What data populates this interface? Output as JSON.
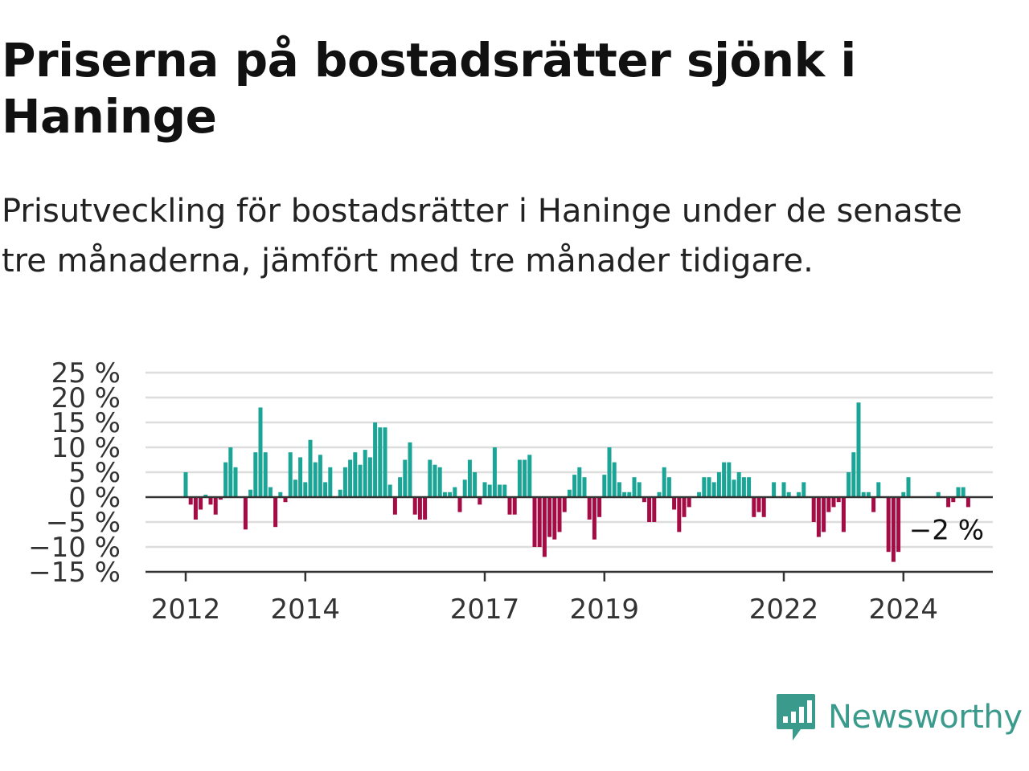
{
  "title": "Priserna på bostadsrätter sjönk i Haninge",
  "subtitle": "Prisutveckling för bostadsrätter i Haninge under de senaste tre månaderna, jämfört med tre månader tidigare.",
  "brand": {
    "name": "Newsworthy",
    "color": "#3a9a8c"
  },
  "colors": {
    "positive": "#1aa596",
    "negative": "#a50b44",
    "grid": "#dddddd",
    "axis": "#333333"
  },
  "chart_data": {
    "type": "bar",
    "unit": "%",
    "ylim": [
      -15,
      25
    ],
    "yticks": [
      25,
      20,
      15,
      10,
      5,
      0,
      -5,
      -10,
      -15
    ],
    "ytick_labels": [
      "25 %",
      "20 %",
      "15 %",
      "10 %",
      "5 %",
      "0 %",
      "−5 %",
      "−10 %",
      "−15 %"
    ],
    "xticks": [
      {
        "label": "2012",
        "date": "2012-01"
      },
      {
        "label": "2014",
        "date": "2014-01"
      },
      {
        "label": "2017",
        "date": "2017-01"
      },
      {
        "label": "2019",
        "date": "2019-01"
      },
      {
        "label": "2022",
        "date": "2022-01"
      },
      {
        "label": "2024",
        "date": "2024-01"
      }
    ],
    "grid": true,
    "last_value_label": "−2 %",
    "start": "2012-01",
    "values": [
      5,
      -1.5,
      -4.5,
      -2.5,
      0.5,
      -1.5,
      -3.5,
      -0.5,
      7,
      10,
      6,
      0,
      -6.5,
      1.5,
      9,
      18,
      9,
      2,
      -6,
      1,
      -1,
      9,
      3.5,
      8,
      3,
      11.5,
      7,
      8.5,
      3,
      6,
      0,
      1.5,
      6,
      7.5,
      9,
      6.5,
      9.5,
      8,
      15,
      14,
      14,
      2.5,
      -3.5,
      4,
      7.5,
      11,
      -3.5,
      -4.5,
      -4.5,
      7.5,
      6.5,
      6,
      1,
      1,
      2,
      -3,
      3.5,
      7.5,
      5,
      -1.5,
      3,
      2.5,
      10,
      2.5,
      2.5,
      -3.5,
      -3.5,
      7.5,
      7.5,
      8.5,
      -10,
      -10,
      -12,
      -8,
      -8.5,
      -7,
      -3,
      1.5,
      4.5,
      6,
      4,
      -4.5,
      -8.5,
      -4,
      4.5,
      10,
      7,
      3,
      1,
      1,
      4,
      3,
      -1,
      -5,
      -5,
      1,
      6,
      4,
      -2.5,
      -7,
      -4,
      -2,
      0,
      1,
      4,
      4,
      3,
      5,
      7,
      7,
      3.5,
      5,
      4,
      4,
      -4,
      -3,
      -4,
      0,
      3,
      0,
      3,
      1,
      0,
      1,
      3,
      0,
      -5,
      -8,
      -7,
      -3,
      -2,
      -1,
      -7,
      5,
      9,
      19,
      1,
      1,
      -3,
      3,
      0,
      -11,
      -13,
      -11,
      1,
      4,
      0,
      0,
      0,
      0,
      0,
      1,
      0,
      -2,
      -1,
      2,
      2,
      -2
    ]
  }
}
